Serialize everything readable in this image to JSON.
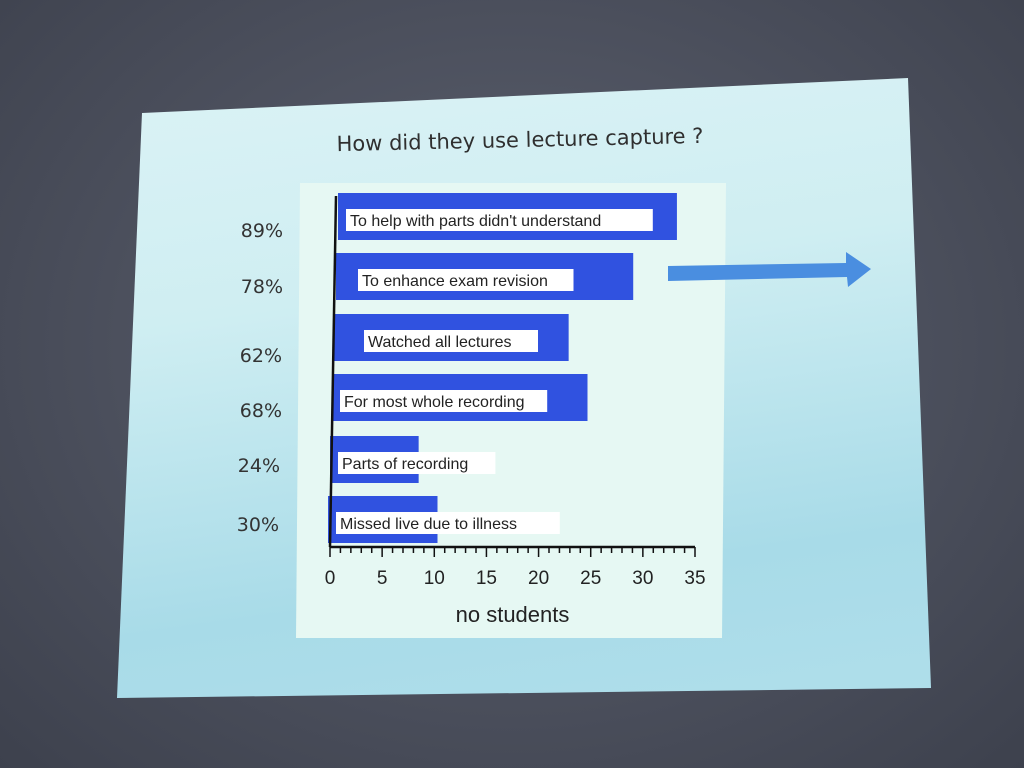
{
  "slide": {
    "title": "How did they use lecture capture ?"
  },
  "percent_labels": [
    "89%",
    "78%",
    "62%",
    "68%",
    "24%",
    "30%"
  ],
  "chart_data": {
    "type": "bar",
    "orientation": "horizontal",
    "categories": [
      "To help with parts didn't understand",
      "To enhance exam  revision",
      "Watched all lectures",
      "For most whole recording",
      "Parts of recording",
      "Missed live due to illness"
    ],
    "values": [
      32.5,
      28.5,
      22.5,
      24.5,
      8.5,
      10.5
    ],
    "xlabel": "no students",
    "xlim": [
      0,
      35
    ],
    "x_ticks": [
      "0",
      "5",
      "10",
      "15",
      "20",
      "25",
      "30",
      "35"
    ],
    "bar_color": "#3052e0",
    "grid": false,
    "legend": "none"
  },
  "colors": {
    "bar": "#3052e0",
    "arrow": "#4a8ee0"
  }
}
